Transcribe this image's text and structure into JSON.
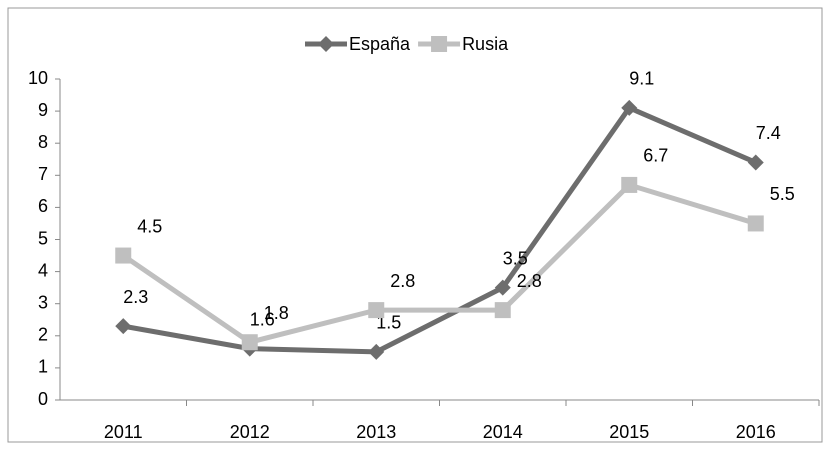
{
  "chart_data": {
    "type": "line",
    "categories": [
      "2011",
      "2012",
      "2013",
      "2014",
      "2015",
      "2016"
    ],
    "series": [
      {
        "name": "España",
        "color": "#6d6d6d",
        "marker": "diamond",
        "values": [
          2.3,
          1.6,
          1.5,
          3.5,
          9.1,
          7.4
        ]
      },
      {
        "name": "Rusia",
        "color": "#bfbfbf",
        "marker": "square",
        "values": [
          4.5,
          1.8,
          2.8,
          2.8,
          6.7,
          5.5
        ]
      }
    ],
    "ylim": [
      0,
      10
    ],
    "yticks": [
      0,
      1,
      2,
      3,
      4,
      5,
      6,
      7,
      8,
      9,
      10
    ],
    "grid": false,
    "legend": "top"
  }
}
